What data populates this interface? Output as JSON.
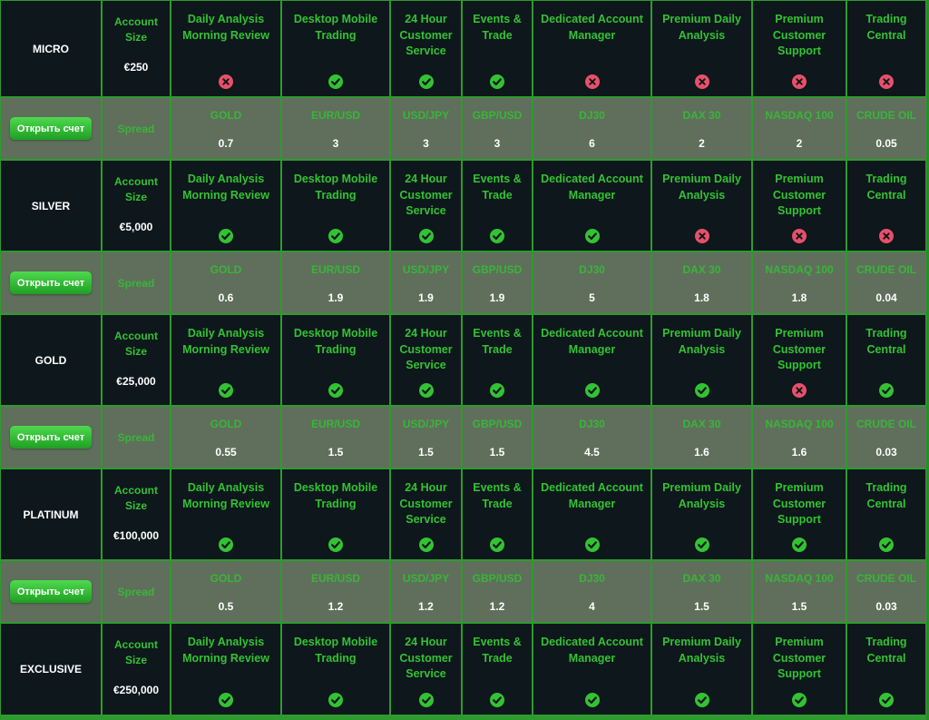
{
  "colors": {
    "check": "#33c233",
    "cross": "#e6506a",
    "accent_text": "#33c233",
    "cell_bg": "#0e171b",
    "spread_bg": "#5f6f5b"
  },
  "features": [
    "Daily Analysis Morning Review",
    "Desktop Mobile Trading",
    "24 Hour Customer Service",
    "Events & Trade",
    "Dedicated Account Manager",
    "Premium Daily Analysis",
    "Premium Customer Support",
    "Trading Central"
  ],
  "instruments": [
    "GOLD",
    "EUR/USD",
    "USD/JPY",
    "GBP/USD",
    "DJ30",
    "DAX 30",
    "NASDAQ 100",
    "CRUDE OIL"
  ],
  "account_label": "Account Size",
  "spread_label": "Spread",
  "button_label": "Открыть счет",
  "tiers": [
    {
      "name": "MICRO",
      "account_size": "€250",
      "features": [
        false,
        true,
        true,
        true,
        false,
        false,
        false,
        false
      ],
      "spreads": [
        "0.7",
        "3",
        "3",
        "3",
        "6",
        "2",
        "2",
        "0.05"
      ]
    },
    {
      "name": "SILVER",
      "account_size": "€5,000",
      "features": [
        true,
        true,
        true,
        true,
        true,
        false,
        false,
        false
      ],
      "spreads": [
        "0.6",
        "1.9",
        "1.9",
        "1.9",
        "5",
        "1.8",
        "1.8",
        "0.04"
      ]
    },
    {
      "name": "GOLD",
      "account_size": "€25,000",
      "features": [
        true,
        true,
        true,
        true,
        true,
        true,
        false,
        true
      ],
      "spreads": [
        "0.55",
        "1.5",
        "1.5",
        "1.5",
        "4.5",
        "1.6",
        "1.6",
        "0.03"
      ]
    },
    {
      "name": "PLATINUM",
      "account_size": "€100,000",
      "features": [
        true,
        true,
        true,
        true,
        true,
        true,
        true,
        true
      ],
      "spreads": [
        "0.5",
        "1.2",
        "1.2",
        "1.2",
        "4",
        "1.5",
        "1.5",
        "0.03"
      ]
    },
    {
      "name": "EXCLUSIVE",
      "account_size": "€250,000",
      "features": [
        true,
        true,
        true,
        true,
        true,
        true,
        true,
        true
      ]
    }
  ]
}
